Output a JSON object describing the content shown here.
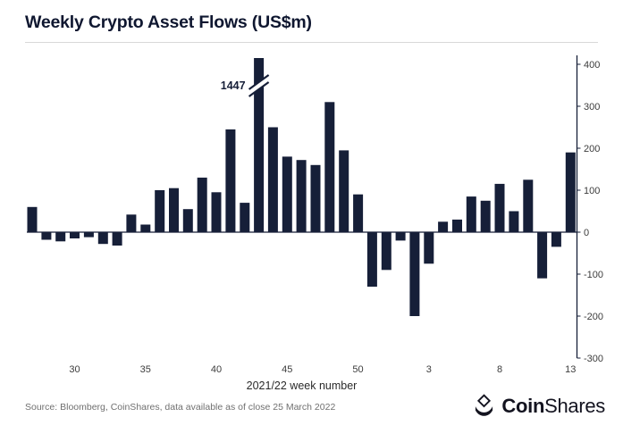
{
  "header": {
    "title": "Weekly Crypto Asset Flows (US$m)"
  },
  "footer": {
    "source": "Source: Bloomberg, CoinShares, data available as of close 25 March 2022",
    "logo": {
      "bold": "Coin",
      "light": "Shares"
    }
  },
  "chart_data": {
    "type": "bar",
    "title": "Weekly Crypto Asset Flows (US$m)",
    "xlabel": "2021/22 week number",
    "ylabel": "",
    "ylim": [
      -300,
      400
    ],
    "yticks": [
      400,
      300,
      200,
      100,
      0,
      -100,
      -200,
      -300
    ],
    "xtick_labels": [
      "30",
      "35",
      "40",
      "45",
      "50",
      "3",
      "8",
      "13"
    ],
    "categories": [
      "27",
      "28",
      "29",
      "30",
      "31",
      "32",
      "33",
      "34",
      "35",
      "36",
      "37",
      "38",
      "39",
      "40",
      "41",
      "42",
      "43",
      "44",
      "45",
      "46",
      "47",
      "48",
      "49",
      "50",
      "51",
      "52",
      "1",
      "2",
      "3",
      "4",
      "5",
      "6",
      "7",
      "8",
      "9",
      "10",
      "11",
      "12",
      "13"
    ],
    "values": [
      60,
      -18,
      -22,
      -15,
      -12,
      -28,
      -32,
      42,
      18,
      100,
      105,
      55,
      130,
      95,
      245,
      70,
      1447,
      250,
      180,
      172,
      160,
      310,
      195,
      90,
      -130,
      -90,
      -20,
      -200,
      -75,
      25,
      30,
      85,
      75,
      115,
      50,
      125,
      -110,
      -35,
      190
    ],
    "annotations": [
      {
        "text": "1447",
        "category": "43",
        "clipped": true,
        "note": "bar exceeds axis, shown with axis break slash"
      }
    ],
    "colors": {
      "bar": "#161f38",
      "axis": "#161f38",
      "tick_text": "#3c3c3c"
    },
    "legend": "none",
    "grid": "zero-line only",
    "axis_position": "right"
  }
}
